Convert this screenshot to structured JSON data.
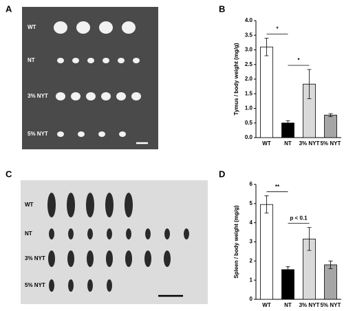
{
  "figure": {
    "panel_labels": [
      "A",
      "B",
      "C",
      "D"
    ],
    "photo_a_labels": [
      "WT",
      "NT",
      "3% NYT",
      "5% NYT"
    ],
    "photo_c_labels": [
      "WT",
      "NT",
      "3% NYT",
      "5% NYT"
    ]
  },
  "chart_data": [
    {
      "type": "bar",
      "y_label": "Tymus / body weight (mg/g)",
      "categories": [
        "WT",
        "NT",
        "3% NYT",
        "5% NYT"
      ],
      "values": [
        3.1,
        0.5,
        1.83,
        0.77
      ],
      "errors": [
        0.3,
        0.08,
        0.5,
        0.05
      ],
      "colors": [
        "#ffffff",
        "#000000",
        "#d9d9d9",
        "#a6a6a6"
      ],
      "ylim": [
        0,
        4
      ],
      "yticks": [
        {
          "value": 0,
          "label": "0.0"
        },
        {
          "value": 0.5,
          "label": "0.5"
        },
        {
          "value": 1,
          "label": "1.0"
        },
        {
          "value": 1.5,
          "label": "1.5"
        },
        {
          "value": 2,
          "label": "2.0"
        },
        {
          "value": 2.5,
          "label": "2.5"
        },
        {
          "value": 3,
          "label": "3.0"
        },
        {
          "value": 3.5,
          "label": "3.5"
        },
        {
          "value": 4,
          "label": "4.0"
        }
      ],
      "annotations": [
        {
          "text": "*",
          "from": 0,
          "to": 1
        },
        {
          "text": "*",
          "from": 1,
          "to": 2
        }
      ]
    },
    {
      "type": "bar",
      "y_label": "Spleen / body weight (mg/g)",
      "categories": [
        "WT",
        "NT",
        "3% NYT",
        "5% NYT"
      ],
      "values": [
        4.95,
        1.55,
        3.15,
        1.8
      ],
      "errors": [
        0.45,
        0.15,
        0.6,
        0.2
      ],
      "colors": [
        "#ffffff",
        "#000000",
        "#d9d9d9",
        "#a6a6a6"
      ],
      "ylim": [
        0,
        6
      ],
      "yticks": [
        0,
        1,
        2,
        3,
        4,
        5,
        6
      ],
      "annotations": [
        {
          "text": "**",
          "from": 0,
          "to": 1
        },
        {
          "text": "p < 0.1",
          "from": 1,
          "to": 2
        }
      ]
    }
  ]
}
